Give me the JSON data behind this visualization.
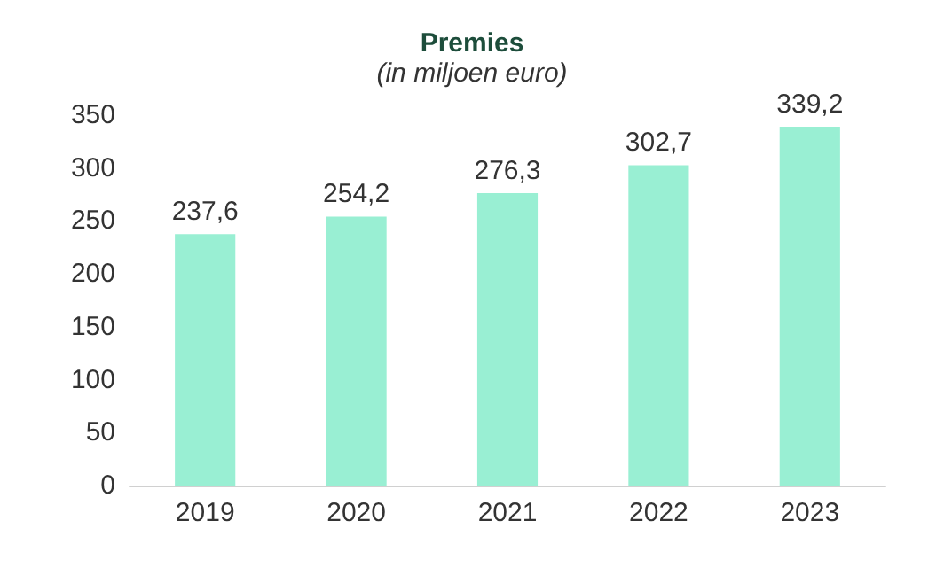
{
  "chart_data": {
    "type": "bar",
    "title": "Premies",
    "subtitle": "(in miljoen euro)",
    "categories": [
      "2019",
      "2020",
      "2021",
      "2022",
      "2023"
    ],
    "values": [
      237.6,
      254.2,
      276.3,
      302.7,
      339.2
    ],
    "value_labels": [
      "237,6",
      "254,2",
      "276,3",
      "302,7",
      "339,2"
    ],
    "color": "#99efd3",
    "ylim": [
      0,
      350
    ],
    "yticks": [
      0,
      50,
      100,
      150,
      200,
      250,
      300,
      350
    ],
    "grid": false
  }
}
